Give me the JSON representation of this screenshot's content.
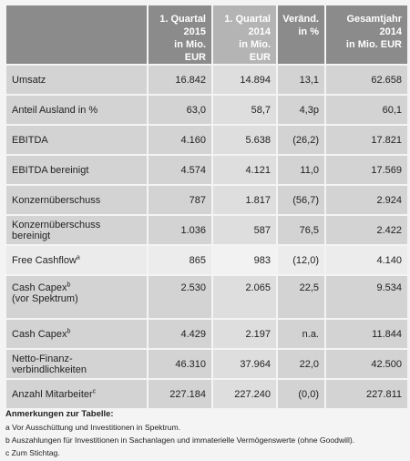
{
  "table": {
    "headers": [
      "",
      "1. Quartal 2015 in Mio. EUR",
      "1. Quartal 2014 in Mio. EUR",
      "Veränd. in %",
      "Gesamtjahr 2014 in Mio. EUR"
    ],
    "header_lines": [
      [
        "",
        ""
      ],
      [
        "1. Quartal",
        "2015",
        "in Mio. EUR"
      ],
      [
        "1. Quartal",
        "2014",
        "in Mio. EUR"
      ],
      [
        "Veränd.",
        "in %"
      ],
      [
        "Gesamtjahr 2014",
        "in Mio. EUR"
      ]
    ],
    "rows": [
      {
        "label": "Umsatz",
        "sup": "",
        "label2": "",
        "q1_2015": "16.842",
        "q1_2014": "14.894",
        "change": "13,1",
        "year_2014": "62.658"
      },
      {
        "label": "Anteil Ausland in %",
        "sup": "",
        "label2": "",
        "q1_2015": "63,0",
        "q1_2014": "58,7",
        "change": "4,3p",
        "year_2014": "60,1"
      },
      {
        "label": "EBITDA",
        "sup": "",
        "label2": "",
        "q1_2015": "4.160",
        "q1_2014": "5.638",
        "change": "(26,2)",
        "year_2014": "17.821"
      },
      {
        "label": "EBITDA bereinigt",
        "sup": "",
        "label2": "",
        "q1_2015": "4.574",
        "q1_2014": "4.121",
        "change": "11,0",
        "year_2014": "17.569"
      },
      {
        "label": "Konzernüberschuss",
        "sup": "",
        "label2": "",
        "q1_2015": "787",
        "q1_2014": "1.817",
        "change": "(56,7)",
        "year_2014": "2.924"
      },
      {
        "label": "Konzernüberschuss bereinigt",
        "sup": "",
        "label2": "",
        "q1_2015": "1.036",
        "q1_2014": "587",
        "change": "76,5",
        "year_2014": "2.422"
      },
      {
        "label": "Free Cashflow",
        "sup": "a",
        "label2": "",
        "q1_2015": "865",
        "q1_2014": "983",
        "change": "(12,0)",
        "year_2014": "4.140"
      },
      {
        "label": "Cash Capex",
        "sup": "b",
        "label2": "(vor Spektrum)",
        "q1_2015": "2.530",
        "q1_2014": "2.065",
        "change": "22,5",
        "year_2014": "9.534"
      },
      {
        "label": "Cash Capex",
        "sup": "b",
        "label2": "",
        "q1_2015": "4.429",
        "q1_2014": "2.197",
        "change": "n.a.",
        "year_2014": "11.844"
      },
      {
        "label": "Netto-Finanz-verbindlichkeiten",
        "sup": "",
        "label2": "",
        "q1_2015": "46.310",
        "q1_2014": "37.964",
        "change": "22,0",
        "year_2014": "42.500"
      },
      {
        "label": "Anzahl Mitarbeiter",
        "sup": "c",
        "label2": "",
        "q1_2015": "227.184",
        "q1_2014": "227.240",
        "change": "(0,0)",
        "year_2014": "227.811"
      }
    ]
  },
  "notes": {
    "title": "Anmerkungen zur Tabelle:",
    "lines": [
      "a Vor Ausschüttung und Investitionen in Spektrum.",
      "b Auszahlungen für Investitionen in Sachanlagen und immaterielle Vermögenswerte (ohne Goodwill).",
      "c Zum Stichtag."
    ]
  },
  "colors": {
    "header": "#8b8b8b",
    "header_highlight": "#b4b4b4",
    "row_shaded": "#d3d3d3",
    "row_plain": "#ececec"
  }
}
